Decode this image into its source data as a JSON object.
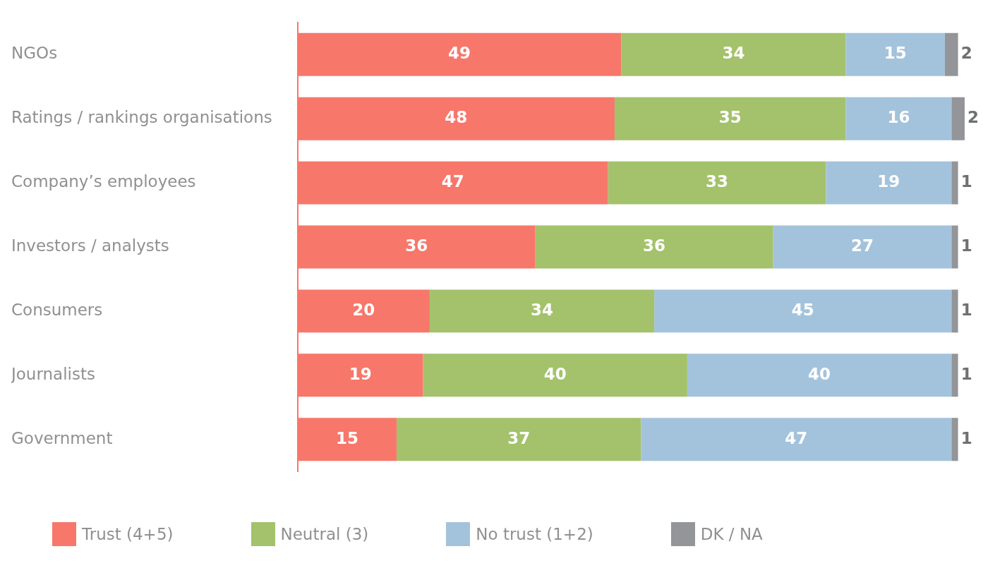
{
  "chart_data": {
    "type": "bar",
    "orientation": "horizontal",
    "stacked": true,
    "data_labels": true,
    "legend": "bottom",
    "grid": false,
    "tick_labels": "y",
    "xlim": [
      0,
      101
    ],
    "categories": [
      "NGOs",
      "Ratings / rankings organisations",
      "Company’s employees",
      "Investors / analysts",
      "Consumers",
      "Journalists",
      "Government"
    ],
    "series": [
      {
        "name": "Trust (4+5)",
        "color": "#f7776b",
        "values": [
          49,
          48,
          47,
          36,
          20,
          19,
          15
        ]
      },
      {
        "name": "Neutral (3)",
        "color": "#a3c26b",
        "values": [
          34,
          35,
          33,
          36,
          34,
          40,
          37
        ]
      },
      {
        "name": "No trust (1+2)",
        "color": "#a3c3dc",
        "values": [
          15,
          16,
          19,
          27,
          45,
          40,
          47
        ]
      },
      {
        "name": "DK / NA",
        "color": "#939598",
        "values": [
          2,
          2,
          1,
          1,
          1,
          1,
          1
        ]
      }
    ]
  }
}
